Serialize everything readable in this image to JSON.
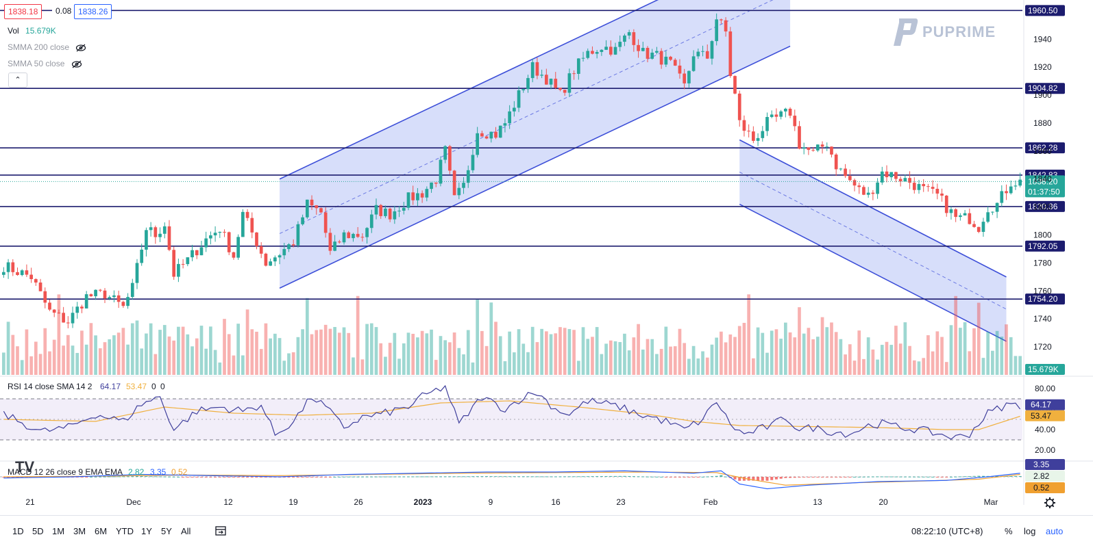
{
  "header": {
    "price_boxes": [
      {
        "value": "1838.18",
        "color": "#f23645"
      },
      {
        "value": "0.08",
        "color": "#131722"
      },
      {
        "value": "1838.26",
        "color": "#2962ff"
      }
    ],
    "legend": [
      {
        "label": "Vol",
        "value": "15.679K",
        "value_color": "#26a69a"
      },
      {
        "label": "SMMA 200 close",
        "value": "",
        "hidden": true
      },
      {
        "label": "SMMA 50 close",
        "value": "",
        "hidden": true
      }
    ],
    "collapse_icon": "chevron-up-icon",
    "logo_text": "PUPRIME"
  },
  "colors": {
    "up": "#26a69a",
    "down": "#ef5350",
    "level": "#1c1c6e",
    "channel_line": "#3d4fd8",
    "channel_fill": "#c9d3f8",
    "rsi": "#3f3f9c",
    "rsi_ma": "#f0b03e",
    "macd": "#2962ff",
    "signal": "#f0a030"
  },
  "chart_data": [
    {
      "type": "candlestick",
      "title": "",
      "y_range": [
        1700,
        1968
      ],
      "y_ticks": [
        1720,
        1740,
        1760,
        1780,
        1800,
        1820,
        1840,
        1860,
        1880,
        1900,
        1920,
        1940
      ],
      "x_labels": [
        "21",
        "Dec",
        "12",
        "19",
        "26",
        "2023",
        "9",
        "16",
        "23",
        "Feb",
        "13",
        "20",
        "Mar"
      ],
      "horizontal_levels": [
        {
          "value": 1960.5,
          "label": "1960.50"
        },
        {
          "value": 1904.82,
          "label": "1904.82"
        },
        {
          "value": 1862.28,
          "label": "1862.28"
        },
        {
          "value": 1842.83,
          "label": "1842.83"
        },
        {
          "value": 1820.36,
          "label": "1820.36"
        },
        {
          "value": 1792.05,
          "label": "1792.05"
        },
        {
          "value": 1754.2,
          "label": "1754.20"
        }
      ],
      "current_price": {
        "value": 1838.2,
        "label": "1838.20",
        "countdown": "01:37:50"
      },
      "volume_label": "15.679K",
      "price_path": [
        [
          0,
          1778
        ],
        [
          6,
          1770
        ],
        [
          10,
          1745
        ],
        [
          14,
          1738
        ],
        [
          18,
          1756
        ],
        [
          22,
          1758
        ],
        [
          26,
          1748
        ],
        [
          28,
          1762
        ],
        [
          31,
          1805
        ],
        [
          33,
          1800
        ],
        [
          35,
          1808
        ],
        [
          37,
          1772
        ],
        [
          40,
          1782
        ],
        [
          44,
          1797
        ],
        [
          47,
          1805
        ],
        [
          50,
          1785
        ],
        [
          52,
          1815
        ],
        [
          55,
          1795
        ],
        [
          57,
          1780
        ],
        [
          60,
          1787
        ],
        [
          63,
          1795
        ],
        [
          66,
          1822
        ],
        [
          69,
          1816
        ],
        [
          71,
          1787
        ],
        [
          74,
          1800
        ],
        [
          78,
          1800
        ],
        [
          81,
          1818
        ],
        [
          84,
          1815
        ],
        [
          88,
          1826
        ],
        [
          91,
          1830
        ],
        [
          94,
          1840
        ],
        [
          96,
          1860
        ],
        [
          98,
          1825
        ],
        [
          100,
          1835
        ],
        [
          103,
          1875
        ],
        [
          107,
          1872
        ],
        [
          109,
          1880
        ],
        [
          112,
          1900
        ],
        [
          115,
          1920
        ],
        [
          118,
          1912
        ],
        [
          121,
          1900
        ],
        [
          124,
          1918
        ],
        [
          127,
          1930
        ],
        [
          130,
          1935
        ],
        [
          133,
          1932
        ],
        [
          136,
          1945
        ],
        [
          139,
          1930
        ],
        [
          142,
          1928
        ],
        [
          145,
          1922
        ],
        [
          148,
          1906
        ],
        [
          150,
          1930
        ],
        [
          153,
          1927
        ],
        [
          155,
          1955
        ],
        [
          157,
          1945
        ],
        [
          158,
          1915
        ],
        [
          159,
          1900
        ],
        [
          160,
          1880
        ],
        [
          163,
          1868
        ],
        [
          166,
          1880
        ],
        [
          169,
          1885
        ],
        [
          171,
          1888
        ],
        [
          173,
          1865
        ],
        [
          176,
          1858
        ],
        [
          179,
          1866
        ],
        [
          181,
          1850
        ],
        [
          183,
          1842
        ],
        [
          186,
          1832
        ],
        [
          188,
          1828
        ],
        [
          191,
          1845
        ],
        [
          194,
          1842
        ],
        [
          197,
          1838
        ],
        [
          200,
          1832
        ],
        [
          203,
          1828
        ],
        [
          205,
          1820
        ],
        [
          207,
          1812
        ],
        [
          210,
          1812
        ],
        [
          212,
          1806
        ],
        [
          214,
          1820
        ],
        [
          216,
          1822
        ],
        [
          219,
          1838
        ],
        [
          221,
          1838
        ]
      ],
      "channels": [
        {
          "name": "",
          "x1": 60,
          "y1": 1762,
          "x2": 171,
          "y2": 1935,
          "width": 78
        },
        {
          "name": "",
          "x1": 160,
          "y1": 1868,
          "x2": 218,
          "y2": 1770,
          "width": 46
        }
      ]
    },
    {
      "type": "line",
      "title": "",
      "legend_label": "RSI 14 close SMA 14 2",
      "legend_values": [
        "64.17",
        "53.47",
        "0",
        "0"
      ],
      "y_ticks": [
        20,
        40,
        60,
        80
      ],
      "bands": [
        30,
        70
      ],
      "series": [
        {
          "name": "",
          "last": 64.17
        },
        {
          "name": "",
          "last": 53.47
        }
      ],
      "rsi_path": [
        [
          0,
          55
        ],
        [
          8,
          38
        ],
        [
          14,
          42
        ],
        [
          20,
          55
        ],
        [
          26,
          48
        ],
        [
          30,
          65
        ],
        [
          34,
          72
        ],
        [
          37,
          40
        ],
        [
          42,
          58
        ],
        [
          47,
          62
        ],
        [
          52,
          58
        ],
        [
          56,
          64
        ],
        [
          59,
          35
        ],
        [
          63,
          48
        ],
        [
          67,
          72
        ],
        [
          70,
          62
        ],
        [
          74,
          42
        ],
        [
          78,
          52
        ],
        [
          82,
          55
        ],
        [
          88,
          62
        ],
        [
          91,
          72
        ],
        [
          96,
          82
        ],
        [
          99,
          45
        ],
        [
          104,
          72
        ],
        [
          109,
          60
        ],
        [
          113,
          72
        ],
        [
          116,
          76
        ],
        [
          120,
          60
        ],
        [
          123,
          55
        ],
        [
          127,
          68
        ],
        [
          131,
          65
        ],
        [
          134,
          62
        ],
        [
          138,
          55
        ],
        [
          141,
          52
        ],
        [
          144,
          48
        ],
        [
          148,
          40
        ],
        [
          152,
          50
        ],
        [
          155,
          68
        ],
        [
          158,
          45
        ],
        [
          161,
          35
        ],
        [
          164,
          40
        ],
        [
          167,
          44
        ],
        [
          170,
          52
        ],
        [
          173,
          40
        ],
        [
          176,
          42
        ],
        [
          180,
          38
        ],
        [
          184,
          36
        ],
        [
          188,
          44
        ],
        [
          191,
          46
        ],
        [
          195,
          42
        ],
        [
          199,
          40
        ],
        [
          203,
          36
        ],
        [
          207,
          32
        ],
        [
          210,
          36
        ],
        [
          214,
          56
        ],
        [
          218,
          64
        ],
        [
          221,
          64
        ]
      ],
      "rsi_ma_path": [
        [
          0,
          50
        ],
        [
          20,
          48
        ],
        [
          35,
          62
        ],
        [
          50,
          56
        ],
        [
          65,
          54
        ],
        [
          80,
          56
        ],
        [
          95,
          66
        ],
        [
          110,
          68
        ],
        [
          125,
          62
        ],
        [
          140,
          55
        ],
        [
          150,
          48
        ],
        [
          160,
          44
        ],
        [
          175,
          43
        ],
        [
          190,
          42
        ],
        [
          205,
          40
        ],
        [
          212,
          40
        ],
        [
          221,
          53
        ]
      ]
    },
    {
      "type": "line",
      "title": "",
      "legend_label": "MACD 12 26 close 9 EMA EMA",
      "legend_values": [
        "2.82",
        "3.35",
        "0.52"
      ],
      "y_range": [
        -12,
        12
      ],
      "series": [
        {
          "name": "",
          "last": 2.82
        },
        {
          "name": "",
          "last": 3.35
        },
        {
          "name": "",
          "last": 0.52
        }
      ],
      "macd_path": [
        [
          0,
          -1
        ],
        [
          15,
          0
        ],
        [
          30,
          2
        ],
        [
          45,
          1
        ],
        [
          60,
          0
        ],
        [
          75,
          2
        ],
        [
          90,
          3
        ],
        [
          105,
          4
        ],
        [
          120,
          4
        ],
        [
          135,
          5
        ],
        [
          150,
          3
        ],
        [
          156,
          5
        ],
        [
          160,
          -6
        ],
        [
          166,
          -10
        ],
        [
          175,
          -7
        ],
        [
          190,
          -4
        ],
        [
          205,
          -3
        ],
        [
          214,
          0
        ],
        [
          221,
          3
        ]
      ],
      "signal_path": [
        [
          0,
          0
        ],
        [
          20,
          0.5
        ],
        [
          40,
          1.5
        ],
        [
          60,
          1
        ],
        [
          80,
          2
        ],
        [
          100,
          3
        ],
        [
          120,
          3.5
        ],
        [
          140,
          4
        ],
        [
          155,
          3.5
        ],
        [
          162,
          -2
        ],
        [
          170,
          -7
        ],
        [
          185,
          -5
        ],
        [
          200,
          -3.5
        ],
        [
          212,
          -2
        ],
        [
          221,
          2
        ]
      ]
    }
  ],
  "x_axis": {
    "gear_icon": "gear-icon"
  },
  "toolbar": {
    "timeframes": [
      "1D",
      "5D",
      "1M",
      "3M",
      "6M",
      "YTD",
      "1Y",
      "5Y",
      "All"
    ],
    "range_icon": "calendar-range-icon",
    "clock": "08:22:10 (UTC+8)",
    "percent": "%",
    "log": "log",
    "auto": "auto"
  },
  "watermark": "TV"
}
